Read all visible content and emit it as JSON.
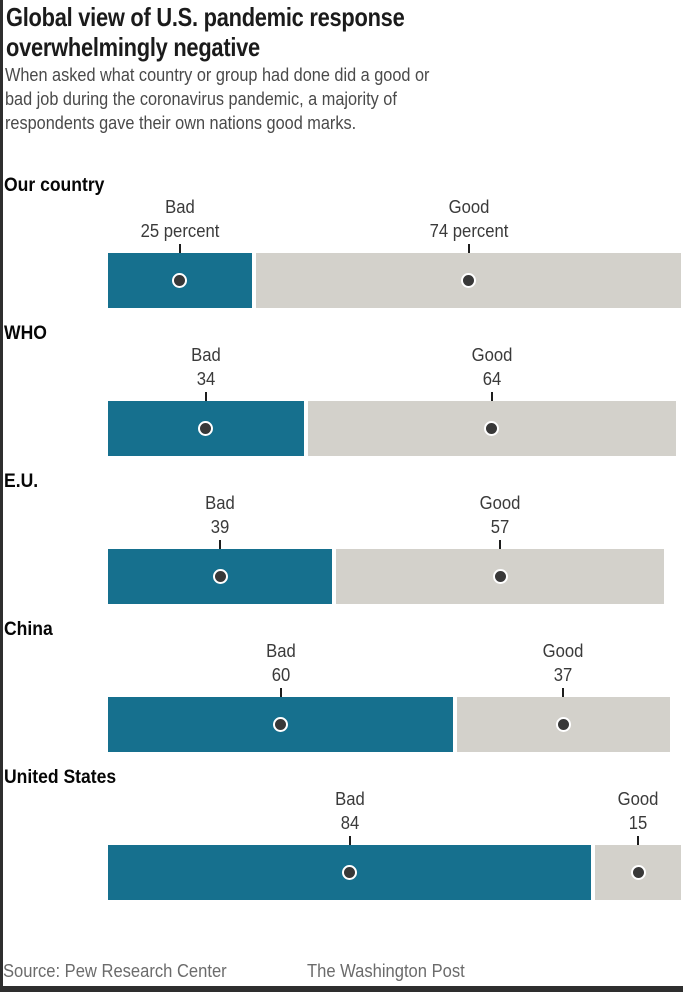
{
  "header": {
    "title_lines": [
      "Global view of U.S. pandemic response",
      "overwhelmingly negative"
    ],
    "subtitle_lines": [
      "When asked what country or group had done did a good or",
      "bad job during the coronavirus pandemic, a majority of",
      "respondents gave their own nations good marks."
    ]
  },
  "footer": {
    "source": "Source: Pew Research Center",
    "credit": "The Washington Post"
  },
  "colors": {
    "bad": "#16708e",
    "good": "#d3d1cb",
    "dot": "#383838",
    "leader": "#1d1d1d"
  },
  "chart_data": {
    "type": "bar",
    "variant": "horizontal-stacked",
    "title": "Global view of U.S. pandemic response overwhelmingly negative",
    "series_labels": [
      "Bad",
      "Good"
    ],
    "xlim": [
      0,
      100
    ],
    "grid": false,
    "legend_position": "above-each-segment",
    "categories": [
      "Our country",
      "WHO",
      "E.U.",
      "China",
      "United States"
    ],
    "rows": [
      {
        "category": "Our country",
        "bad": 25,
        "good": 74,
        "bad_text": "25 percent",
        "good_text": "74 percent"
      },
      {
        "category": "WHO",
        "bad": 34,
        "good": 64,
        "bad_text": "34",
        "good_text": "64"
      },
      {
        "category": "E.U.",
        "bad": 39,
        "good": 57,
        "bad_text": "39",
        "good_text": "57"
      },
      {
        "category": "China",
        "bad": 60,
        "good": 37,
        "bad_text": "60",
        "good_text": "37"
      },
      {
        "category": "United States",
        "bad": 84,
        "good": 15,
        "bad_text": "84",
        "good_text": "15"
      }
    ]
  }
}
